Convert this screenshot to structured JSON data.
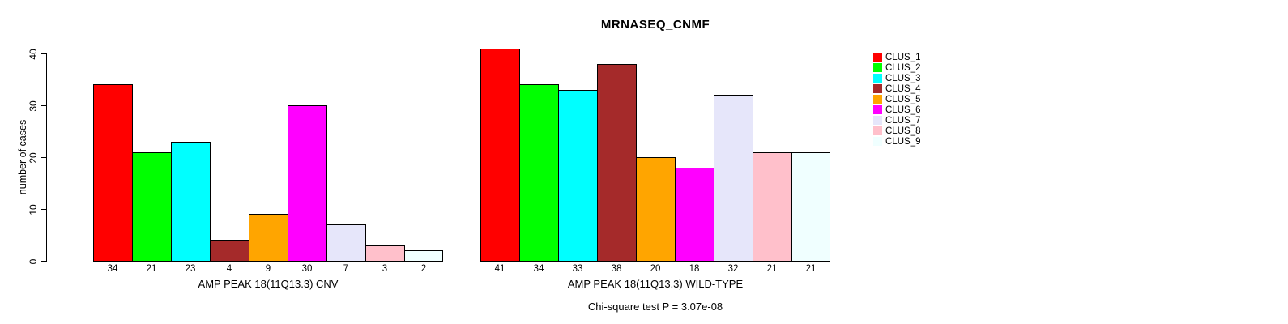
{
  "title": "MRNASEQ_CNMF",
  "annotation": "Chi-square test P = 3.07e-08",
  "palette": [
    "#FF0000",
    "#00FF00",
    "#00FFFF",
    "#A52A2A",
    "#FFA500",
    "#FF00FF",
    "#E6E6FA",
    "#FFC0CB",
    "#F0FFFF"
  ],
  "y_axis": {
    "label": "number of cases",
    "ticks": [
      0,
      10,
      20,
      30,
      40
    ],
    "limits": [
      0,
      40
    ]
  },
  "legend": {
    "position": "right",
    "entries": [
      {
        "label": "CLUS_1",
        "color": "#FF0000"
      },
      {
        "label": "CLUS_2",
        "color": "#00FF00"
      },
      {
        "label": "CLUS_3",
        "color": "#00FFFF"
      },
      {
        "label": "CLUS_4",
        "color": "#A52A2A"
      },
      {
        "label": "CLUS_5",
        "color": "#FFA500"
      },
      {
        "label": "CLUS_6",
        "color": "#FF00FF"
      },
      {
        "label": "CLUS_7",
        "color": "#E6E6FA"
      },
      {
        "label": "CLUS_8",
        "color": "#FFC0CB"
      },
      {
        "label": "CLUS_9",
        "color": "#F0FFFF"
      }
    ]
  },
  "chart_data": [
    {
      "type": "bar",
      "title": "MRNASEQ_CNMF",
      "xlabel": "AMP PEAK 18(11Q13.3) CNV",
      "ylabel": "number of cases",
      "ylim": [
        0,
        40
      ],
      "grid": false,
      "categories": [
        "CLUS_1",
        "CLUS_2",
        "CLUS_3",
        "CLUS_4",
        "CLUS_5",
        "CLUS_6",
        "CLUS_7",
        "CLUS_8",
        "CLUS_9"
      ],
      "values": [
        34,
        21,
        23,
        4,
        9,
        30,
        7,
        3,
        2
      ],
      "bar_labels": [
        "34",
        "21",
        "23",
        "4",
        "9",
        "30",
        "7",
        "3",
        "2"
      ]
    },
    {
      "type": "bar",
      "title": "MRNASEQ_CNMF",
      "xlabel": "AMP PEAK 18(11Q13.3) WILD-TYPE",
      "ylabel": "number of cases",
      "ylim": [
        0,
        40
      ],
      "grid": false,
      "categories": [
        "CLUS_1",
        "CLUS_2",
        "CLUS_3",
        "CLUS_4",
        "CLUS_5",
        "CLUS_6",
        "CLUS_7",
        "CLUS_8",
        "CLUS_9"
      ],
      "values": [
        41,
        34,
        33,
        38,
        20,
        18,
        32,
        21,
        21
      ],
      "bar_labels": [
        "41",
        "34",
        "33",
        "38",
        "20",
        "18",
        "32",
        "21",
        "21"
      ]
    }
  ]
}
